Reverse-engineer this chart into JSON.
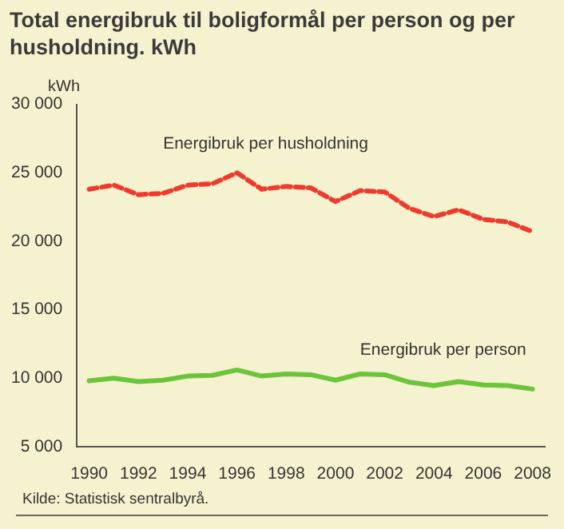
{
  "chart_data": {
    "type": "line",
    "title": "Total energibruk til boligformål per person og per husholdning. kWh",
    "ylabel": "kWh",
    "categories": [
      "1990",
      null,
      "1992",
      null,
      "1994",
      null,
      "1996",
      null,
      "1998",
      null,
      "2000",
      null,
      "2002",
      null,
      "2004",
      null,
      "2006",
      null,
      "2008"
    ],
    "series": [
      {
        "name": "Energibruk per husholdning",
        "color": "#ee3b2e",
        "line_style": "dashed",
        "values": [
          23800,
          24100,
          23400,
          23500,
          24100,
          24200,
          25000,
          23800,
          24000,
          23900,
          22900,
          23700,
          23600,
          22400,
          21800,
          22300,
          21600,
          21400,
          20700
        ]
      },
      {
        "name": "Energibruk per person",
        "color": "#6cc43a",
        "line_style": "solid",
        "values": [
          9800,
          10000,
          9750,
          9850,
          10150,
          10200,
          10600,
          10150,
          10300,
          10250,
          9850,
          10300,
          10250,
          9700,
          9450,
          9750,
          9500,
          9450,
          9200
        ]
      }
    ],
    "ylim": [
      5000,
      30000
    ],
    "yticks": [
      {
        "value": 5000,
        "label": "5 000"
      },
      {
        "value": 10000,
        "label": "10 000"
      },
      {
        "value": 15000,
        "label": "15 000"
      },
      {
        "value": 20000,
        "label": "20 000"
      },
      {
        "value": 25000,
        "label": "25 000"
      },
      {
        "value": 30000,
        "label": "30 000"
      }
    ],
    "grid": false,
    "legend": false,
    "marker": "none",
    "annotations": [
      "Kilde: Statistisk sentralbyrå."
    ]
  }
}
